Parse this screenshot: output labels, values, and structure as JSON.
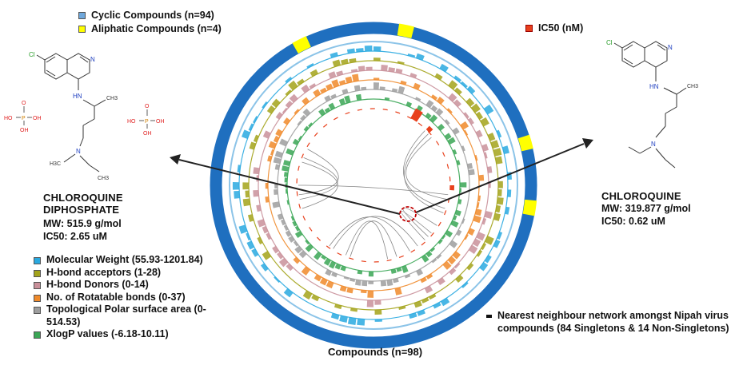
{
  "legend_top": [
    {
      "label": "Cyclic Compounds (n=94)",
      "color": "#6fa8dc"
    },
    {
      "label": "Aliphatic Compounds (n=4)",
      "color": "#ffff00"
    }
  ],
  "ic50_legend": {
    "label": "IC50 (nM)",
    "color": "#e8401c"
  },
  "left_compound": {
    "name_line1": "CHLOROQUINE",
    "name_line2": "DIPHOSPHATE",
    "mw": "MW: 515.9 g/mol",
    "ic50": "IC50: 2.65 uM"
  },
  "right_compound": {
    "name": "CHLOROQUINE",
    "mw": "MW: 319.877 g/mol",
    "ic50": "IC50: 0.62 uM"
  },
  "structure_labels": {
    "cl": "Cl",
    "n": "N",
    "hn": "HN",
    "ch3": "CH3",
    "h3c": "H3C",
    "oh": "OH",
    "ho": "HO",
    "p": "P",
    "o": "O"
  },
  "property_legend": [
    {
      "label": "Molecular Weight (55.93-1201.84)",
      "color": "#29a9e0"
    },
    {
      "label": "H-bond acceptors (1-28)",
      "color": "#a3a31a"
    },
    {
      "label": "H-bond Donors (0-14)",
      "color": "#c9909a"
    },
    {
      "label": "No. of Rotatable bonds (0-37)",
      "color": "#f08a2a"
    },
    {
      "label": "Topological Polar surface area (0-514.53)",
      "color": "#9e9e9e"
    },
    {
      "label": "XlogP values (-6.18-10.11)",
      "color": "#3aa655"
    }
  ],
  "network_legend": {
    "label": "Nearest neighbour network amongst Nipah virus compounds (84 Singletons & 14 Non-Singletons)",
    "color": "#111111"
  },
  "bottom_label": "Compounds (n=98)",
  "colors": {
    "outer_ring": "#1f6fbf",
    "aliphatic": "#ffff00",
    "arrow": "#222222",
    "highlight": "#c00000"
  }
}
